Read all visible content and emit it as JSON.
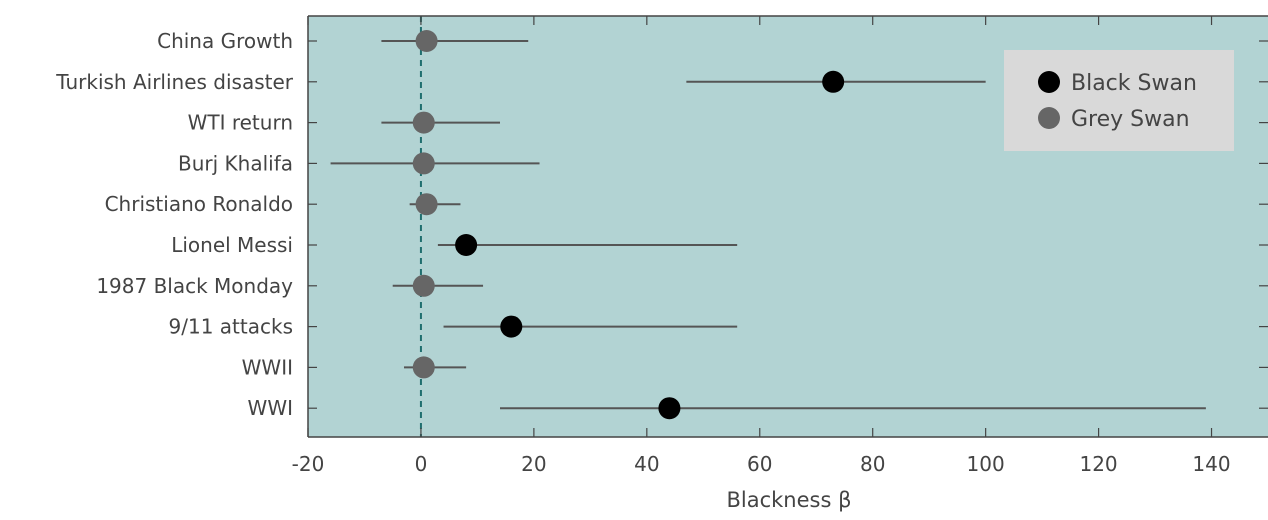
{
  "chart_data": {
    "type": "scatter",
    "subtype": "dot-with-error-bars",
    "title": "",
    "xlabel": "Blackness β",
    "ylabel": "",
    "xlim": [
      -20,
      150
    ],
    "xticks": [
      -20,
      0,
      20,
      40,
      60,
      80,
      100,
      120,
      140
    ],
    "x_tick_labels": [
      "-20",
      "0",
      "20",
      "40",
      "60",
      "80",
      "100",
      "120",
      "140"
    ],
    "reference_line": {
      "x": 0,
      "style": "dashed"
    },
    "grid": false,
    "legend_position": "top-right",
    "colors": {
      "plot_background": "#b2d3d3",
      "Black Swan": "#000000",
      "Grey Swan": "#666666",
      "error_bar": "#555555",
      "reference_line": "#1f6f6f",
      "legend_background": "#d9d9d9"
    },
    "series": [
      {
        "name": "Black Swan",
        "points": [
          {
            "label": "Turkish Airlines disaster",
            "x": 73,
            "lo": 47,
            "hi": 100
          },
          {
            "label": "Lionel Messi",
            "x": 8,
            "lo": 3,
            "hi": 56
          },
          {
            "label": "9/11 attacks",
            "x": 16,
            "lo": 4,
            "hi": 56
          },
          {
            "label": "WWI",
            "x": 44,
            "lo": 14,
            "hi": 139
          }
        ]
      },
      {
        "name": "Grey Swan",
        "points": [
          {
            "label": "China Growth",
            "x": 1,
            "lo": -7,
            "hi": 19
          },
          {
            "label": "WTI return",
            "x": 0.5,
            "lo": -7,
            "hi": 14
          },
          {
            "label": "Burj Khalifa",
            "x": 0.5,
            "lo": -16,
            "hi": 21
          },
          {
            "label": "Christiano Ronaldo",
            "x": 1,
            "lo": -2,
            "hi": 7
          },
          {
            "label": "1987 Black Monday",
            "x": 0.5,
            "lo": -5,
            "hi": 11
          },
          {
            "label": "WWII",
            "x": 0.5,
            "lo": -3,
            "hi": 8
          }
        ]
      }
    ],
    "categories": [
      "China Growth",
      "Turkish Airlines disaster",
      "WTI return",
      "Burj Khalifa",
      "Christiano Ronaldo",
      "Lionel Messi",
      "1987 Black Monday",
      "9/11 attacks",
      "WWII",
      "WWI"
    ]
  }
}
